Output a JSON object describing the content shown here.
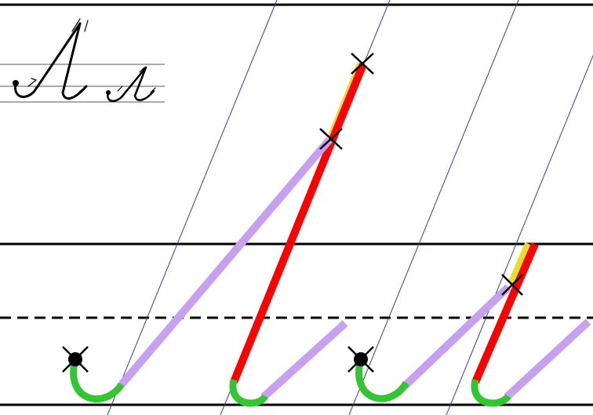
{
  "colors": {
    "background": "#ffffff",
    "ruling_line": "#000000",
    "slant_line": "#3a3aa8",
    "first_stroke": "#e8de22",
    "main_stroke": "#ff0000",
    "connecting_stroke": "#c8a0f0",
    "hook_stroke": "#33c633",
    "start_point": "#000000",
    "cross_marker": "#000000"
  },
  "reference_sample": {
    "glyphs": [
      "Л",
      "л"
    ],
    "icon": "cursive-letter-sample-icon"
  },
  "letters": [
    {
      "name": "capital-el",
      "strokes": [
        "hook",
        "connector",
        "main",
        "first"
      ],
      "markers": [
        "start-dot",
        "cross",
        "cross"
      ]
    },
    {
      "name": "small-el",
      "strokes": [
        "hook",
        "connector",
        "main",
        "first"
      ],
      "markers": [
        "start-dot",
        "cross"
      ]
    }
  ]
}
